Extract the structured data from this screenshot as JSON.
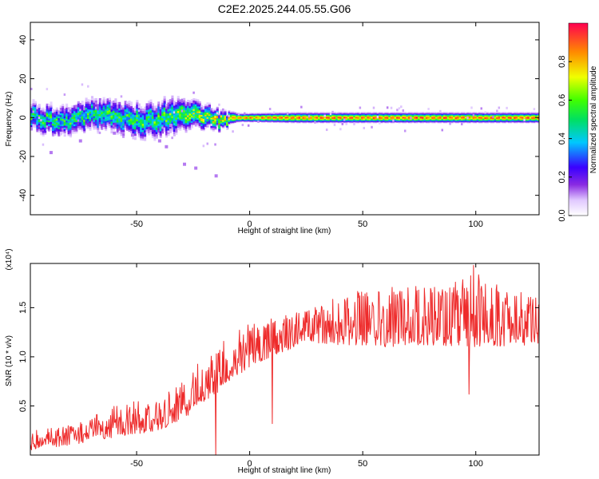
{
  "title": "C2E2.2025.244.05.55.G06",
  "colors": {
    "snr_line": "#ee2b2b",
    "axes": "#000000",
    "background": "#ffffff"
  },
  "chart_data": [
    {
      "type": "heatmap",
      "name": "spectrogram",
      "xlabel": "Height of straight line (km)",
      "ylabel": "Frequency (Hz)",
      "xlim": [
        -97,
        128
      ],
      "ylim": [
        -50,
        49
      ],
      "xticks": [
        -50,
        0,
        50,
        100
      ],
      "yticks": [
        -40,
        -20,
        0,
        20,
        40
      ],
      "colorbar": {
        "label": "Normalized spectral amplitude",
        "range": [
          0.0,
          1.0
        ],
        "ticks": [
          0.0,
          0.2,
          0.4,
          0.6,
          0.8
        ],
        "colormap": "rainbow"
      },
      "description_of_data": {
        "center_frequency_hz": 0,
        "spread_hz_by_height": [
          {
            "x": -97,
            "spread": 7
          },
          {
            "x": -60,
            "spread": 8
          },
          {
            "x": -35,
            "spread": 9
          },
          {
            "x": -15,
            "spread": 5
          },
          {
            "x": -5,
            "spread": 2
          },
          {
            "x": 20,
            "spread": 2.5
          },
          {
            "x": 128,
            "spread": 2.5
          }
        ],
        "peak_amplitude_by_height": [
          {
            "x": -97,
            "amp": 0.55
          },
          {
            "x": -40,
            "amp": 0.6
          },
          {
            "x": -20,
            "amp": 0.75
          },
          {
            "x": -10,
            "amp": 0.9
          },
          {
            "x": 10,
            "amp": 0.95
          },
          {
            "x": 128,
            "amp": 0.95
          }
        ],
        "outliers": [
          {
            "x": -75,
            "y": -12
          },
          {
            "x": -60,
            "y": -8
          },
          {
            "x": -52,
            "y": -9
          },
          {
            "x": -40,
            "y": -12
          },
          {
            "x": -37,
            "y": -15
          },
          {
            "x": -29,
            "y": -24
          },
          {
            "x": -24,
            "y": -26
          },
          {
            "x": -15,
            "y": -30
          },
          {
            "x": -35,
            "y": -4
          },
          {
            "x": -88,
            "y": -18
          }
        ]
      }
    },
    {
      "type": "line",
      "name": "snr",
      "xlabel": "Height of straight line (km)",
      "ylabel": "SNR (10 * v/v)",
      "yscale_label": "(x10⁴)",
      "xlim": [
        -97,
        128
      ],
      "ylim": [
        0.0,
        1.95
      ],
      "xticks": [
        -50,
        0,
        50,
        100
      ],
      "yticks": [
        0.5,
        1.0,
        1.5
      ],
      "envelope": {
        "x": [
          -97,
          -80,
          -60,
          -40,
          -30,
          -20,
          -10,
          0,
          10,
          20,
          25,
          40,
          60,
          80,
          100,
          128
        ],
        "baseline": [
          0.05,
          0.1,
          0.18,
          0.25,
          0.35,
          0.55,
          0.7,
          0.9,
          1.0,
          1.1,
          1.15,
          1.12,
          1.1,
          1.12,
          1.1,
          1.12
        ],
        "peak": [
          0.25,
          0.3,
          0.5,
          0.6,
          0.75,
          1.0,
          1.2,
          1.35,
          1.4,
          1.45,
          1.5,
          1.65,
          1.7,
          1.75,
          1.85,
          1.6
        ]
      },
      "notable_points": [
        {
          "x": 99,
          "y": 1.93
        },
        {
          "x": 97,
          "y": 0.62
        },
        {
          "x": 10,
          "y": 0.32
        },
        {
          "x": -15,
          "y": 0.0
        }
      ]
    }
  ]
}
